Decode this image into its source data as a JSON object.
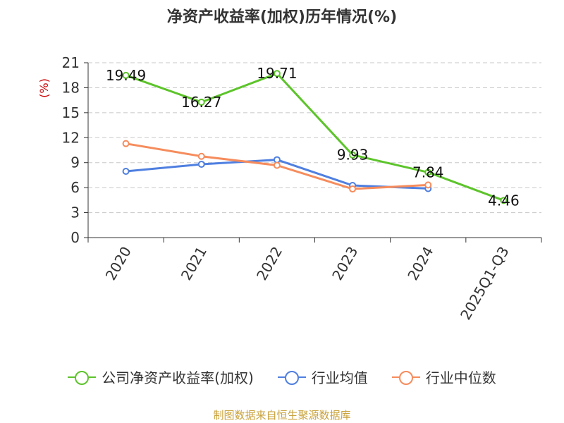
{
  "chart_data": {
    "type": "line",
    "title": "净资产收益率(加权)历年情况(%)",
    "ylabel": "(%)",
    "xlabel": "",
    "categories": [
      "2020",
      "2021",
      "2022",
      "2023",
      "2024",
      "2025Q1-Q3"
    ],
    "ylim": [
      0,
      21
    ],
    "yticks": [
      0,
      3,
      6,
      9,
      12,
      15,
      18,
      21
    ],
    "grid": true,
    "legend_position": "bottom",
    "series": [
      {
        "name": "公司净资产收益率(加权)",
        "color": "#5dc42b",
        "values": [
          19.49,
          16.27,
          19.71,
          9.93,
          7.84,
          4.46
        ],
        "labels": true
      },
      {
        "name": "行业均值",
        "color": "#4f7fe0",
        "values": [
          7.96,
          8.81,
          9.35,
          6.27,
          5.89,
          null
        ],
        "labels": false
      },
      {
        "name": "行业中位数",
        "color": "#f68c5c",
        "values": [
          11.29,
          9.76,
          8.68,
          5.84,
          6.32,
          null
        ],
        "labels": false
      }
    ]
  },
  "footer": "制图数据来自恒生聚源数据库"
}
